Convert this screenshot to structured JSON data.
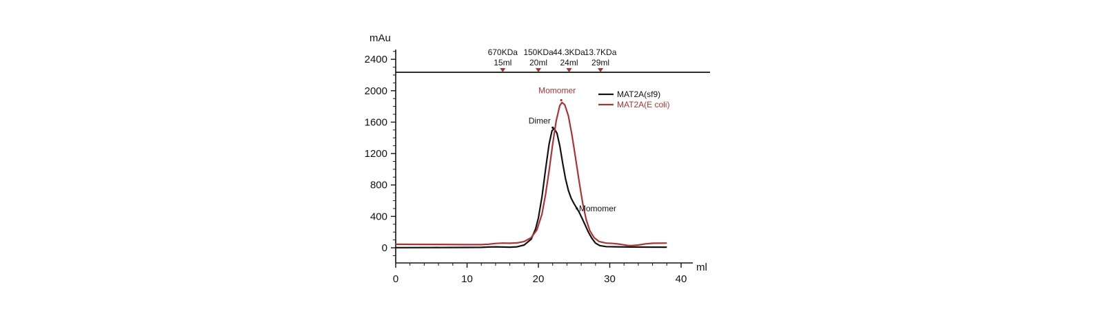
{
  "chart_data": {
    "type": "line",
    "xlabel": "ml",
    "ylabel": "mAu",
    "xlim": [
      0,
      40
    ],
    "ylim": [
      -150,
      2500
    ],
    "x_ticks": [
      0,
      10,
      20,
      30,
      40
    ],
    "y_ticks": [
      0,
      400,
      800,
      1200,
      1600,
      2000,
      2400
    ],
    "grid": false,
    "legend_position": "top-right",
    "markers_y": 2200,
    "markers": [
      {
        "x": 15,
        "mw": "670KDa",
        "vol": "15ml"
      },
      {
        "x": 20,
        "mw": "150KDa",
        "vol": "20ml"
      },
      {
        "x": 24.3,
        "mw": "44.3KDa",
        "vol": "24ml"
      },
      {
        "x": 28.7,
        "mw": "13.7KDa",
        "vol": "29ml"
      }
    ],
    "series": [
      {
        "name": "MAT2A(sf9)",
        "color": "#111111",
        "points": [
          [
            0,
            2
          ],
          [
            5,
            3
          ],
          [
            10,
            4
          ],
          [
            12,
            5
          ],
          [
            13,
            10
          ],
          [
            14,
            12
          ],
          [
            15,
            10
          ],
          [
            16,
            8
          ],
          [
            17,
            12
          ],
          [
            18,
            35
          ],
          [
            19,
            110
          ],
          [
            19.6,
            240
          ],
          [
            20,
            380
          ],
          [
            20.5,
            650
          ],
          [
            21,
            1000
          ],
          [
            21.5,
            1320
          ],
          [
            21.9,
            1490
          ],
          [
            22.2,
            1520
          ],
          [
            22.6,
            1460
          ],
          [
            23,
            1300
          ],
          [
            23.4,
            1080
          ],
          [
            23.8,
            880
          ],
          [
            24.2,
            730
          ],
          [
            24.6,
            630
          ],
          [
            25,
            560
          ],
          [
            25.4,
            500
          ],
          [
            25.7,
            455
          ],
          [
            26.1,
            380
          ],
          [
            26.5,
            300
          ],
          [
            27,
            200
          ],
          [
            27.5,
            120
          ],
          [
            28,
            60
          ],
          [
            28.6,
            28
          ],
          [
            29.5,
            15
          ],
          [
            31,
            12
          ],
          [
            33,
            10
          ],
          [
            35,
            9
          ],
          [
            38,
            8
          ]
        ]
      },
      {
        "name": "MAT2A(E coli)",
        "color": "#b03030",
        "points": [
          [
            0,
            45
          ],
          [
            5,
            43
          ],
          [
            10,
            40
          ],
          [
            12,
            40
          ],
          [
            13,
            45
          ],
          [
            14,
            55
          ],
          [
            15,
            60
          ],
          [
            16,
            58
          ],
          [
            17,
            62
          ],
          [
            18,
            80
          ],
          [
            19,
            130
          ],
          [
            19.8,
            230
          ],
          [
            20.5,
            430
          ],
          [
            21,
            680
          ],
          [
            21.5,
            980
          ],
          [
            22,
            1320
          ],
          [
            22.5,
            1620
          ],
          [
            23,
            1810
          ],
          [
            23.3,
            1850
          ],
          [
            23.7,
            1820
          ],
          [
            24.2,
            1680
          ],
          [
            24.7,
            1440
          ],
          [
            25.2,
            1150
          ],
          [
            25.7,
            850
          ],
          [
            26.2,
            570
          ],
          [
            26.7,
            360
          ],
          [
            27.2,
            220
          ],
          [
            27.8,
            130
          ],
          [
            28.5,
            80
          ],
          [
            29.5,
            60
          ],
          [
            30.5,
            55
          ],
          [
            31.5,
            45
          ],
          [
            32.5,
            30
          ],
          [
            33,
            28
          ],
          [
            34,
            35
          ],
          [
            35,
            50
          ],
          [
            36,
            58
          ],
          [
            38,
            60
          ]
        ]
      }
    ],
    "annotations": [
      {
        "text": "Dimer",
        "x": 22,
        "y": 1530,
        "color": "#111111"
      },
      {
        "text": "Momomer",
        "x": 25.4,
        "y": 500,
        "color": "#111111"
      },
      {
        "text": "Momomer",
        "x": 23.2,
        "y": 1880,
        "color": "#b03030"
      }
    ]
  }
}
